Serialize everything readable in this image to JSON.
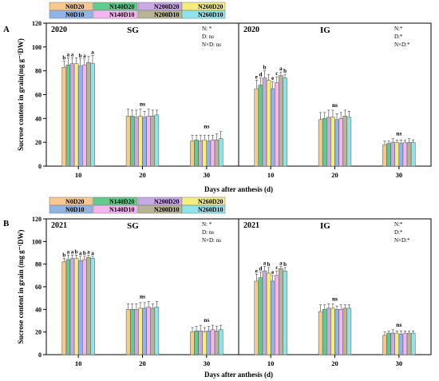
{
  "x_axis_title": "Days after anthesis (d)",
  "legend": [
    {
      "name": "N0D20",
      "color": "#f8c98a"
    },
    {
      "name": "N140D20",
      "color": "#5fcb8d"
    },
    {
      "name": "N200D20",
      "color": "#c9a8e6"
    },
    {
      "name": "N260D20",
      "color": "#f6ee7c"
    },
    {
      "name": "N0D10",
      "color": "#8fb3ea"
    },
    {
      "name": "N140D10",
      "color": "#f7b5ef"
    },
    {
      "name": "N200D10",
      "color": "#b7b394"
    },
    {
      "name": "N260D10",
      "color": "#8ee4ea"
    }
  ],
  "chart_data": [
    {
      "panel_label": "A",
      "year": "2020",
      "type": "bar",
      "ylabel": "Sucrose content in grain(mg g⁻¹DW)",
      "xlabel": "Days after anthesis (d)",
      "ylim": [
        0,
        120
      ],
      "yticks": [
        0,
        20,
        40,
        60,
        80,
        100,
        120
      ],
      "categories": [
        "10",
        "20",
        "30"
      ],
      "series_order": [
        "N0D20",
        "N140D20",
        "N200D20",
        "N260D20",
        "N0D10",
        "N140D10",
        "N200D10",
        "N260D10"
      ],
      "panels": [
        {
          "name": "SG",
          "stats": [
            "N: *",
            "D: ns",
            "N×D: ns"
          ],
          "groups": [
            {
              "values": [
                83,
                85,
                86,
                86,
                84,
                85,
                87,
                86
              ],
              "errors": [
                5,
                6,
                5,
                5,
                6,
                5,
                5,
                7
              ],
              "labels": [
                "b",
                "a",
                "a",
                "",
                "b",
                "a",
                "",
                "a"
              ]
            },
            {
              "values": [
                42,
                42,
                41,
                42,
                41,
                42,
                42,
                43
              ],
              "errors": [
                6,
                5,
                6,
                6,
                5,
                6,
                5,
                4
              ],
              "labels": [
                "ns"
              ]
            },
            {
              "values": [
                21,
                22,
                21,
                22,
                21,
                22,
                22,
                23
              ],
              "errors": [
                5,
                4,
                5,
                4,
                5,
                4,
                5,
                6
              ],
              "labels": [
                "ns"
              ]
            }
          ]
        },
        {
          "name": "IG",
          "stats": [
            "N:*",
            "D:*",
            "N×D:*"
          ],
          "groups": [
            {
              "values": [
                65,
                68,
                74,
                72,
                65,
                70,
                76,
                74
              ],
              "errors": [
                7,
                6,
                6,
                5,
                6,
                5,
                3,
                3
              ],
              "labels": [
                "e",
                "d",
                "b",
                "",
                "e",
                "c",
                "a",
                "b"
              ]
            },
            {
              "values": [
                39,
                40,
                41,
                41,
                39,
                40,
                42,
                41
              ],
              "errors": [
                6,
                5,
                6,
                6,
                5,
                5,
                5,
                5
              ],
              "labels": [
                "ns"
              ]
            },
            {
              "values": [
                18,
                19,
                20,
                20,
                19,
                20,
                20,
                20
              ],
              "errors": [
                3,
                2,
                3,
                2,
                3,
                2,
                3,
                2
              ],
              "labels": [
                "ns"
              ]
            }
          ]
        }
      ]
    },
    {
      "panel_label": "B",
      "year": "2021",
      "type": "bar",
      "ylabel": "Sucrose content in grain (mg g⁻¹DW)",
      "xlabel": "Days after anthesis (d)",
      "ylim": [
        0,
        120
      ],
      "yticks": [
        0,
        20,
        40,
        60,
        80,
        100,
        120
      ],
      "categories": [
        "10",
        "20",
        "30"
      ],
      "series_order": [
        "N0D20",
        "N140D20",
        "N200D20",
        "N260D20",
        "N0D10",
        "N140D10",
        "N200D10",
        "N260D10"
      ],
      "panels": [
        {
          "name": "SG",
          "stats": [
            "N: *",
            "D: ns",
            "N×D: ns"
          ],
          "groups": [
            {
              "values": [
                82,
                84,
                85,
                85,
                83,
                84,
                86,
                85
              ],
              "errors": [
                3,
                4,
                3,
                3,
                4,
                3,
                2,
                2
              ],
              "labels": [
                "b",
                "a",
                "a",
                "b",
                "a",
                "b",
                "a",
                "a"
              ]
            },
            {
              "values": [
                40,
                40,
                40,
                41,
                41,
                42,
                41,
                42
              ],
              "errors": [
                5,
                5,
                5,
                5,
                5,
                5,
                4,
                5
              ],
              "labels": [
                "ns"
              ]
            },
            {
              "values": [
                20,
                21,
                21,
                20,
                21,
                22,
                21,
                22
              ],
              "errors": [
                4,
                4,
                5,
                4,
                4,
                4,
                4,
                4
              ],
              "labels": [
                "ns"
              ]
            }
          ]
        },
        {
          "name": "IG",
          "stats": [
            "N:*",
            "D:*",
            "N×D:*"
          ],
          "groups": [
            {
              "values": [
                65,
                68,
                74,
                72,
                65,
                70,
                76,
                74
              ],
              "errors": [
                6,
                5,
                4,
                5,
                5,
                4,
                2,
                3
              ],
              "labels": [
                "e",
                "d",
                "a",
                "b",
                "e",
                "c",
                "a",
                "b"
              ]
            },
            {
              "values": [
                38,
                40,
                41,
                41,
                40,
                40,
                41,
                41
              ],
              "errors": [
                6,
                4,
                4,
                4,
                3,
                4,
                3,
                3
              ],
              "labels": [
                "ns"
              ]
            },
            {
              "values": [
                17,
                19,
                19,
                19,
                18,
                19,
                19,
                19
              ],
              "errors": [
                3,
                2,
                3,
                2,
                3,
                2,
                2,
                2
              ],
              "labels": [
                "ns"
              ]
            }
          ]
        }
      ]
    }
  ]
}
